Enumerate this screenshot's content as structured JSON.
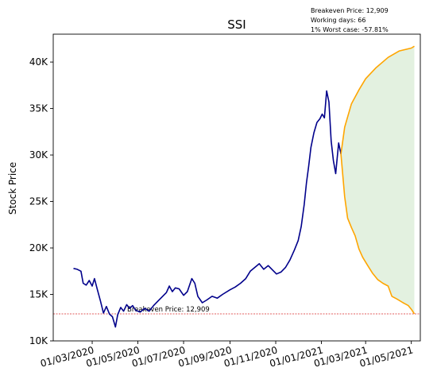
{
  "chart_data": {
    "type": "line",
    "title": "SSI",
    "xlabel": "",
    "ylabel": "Stock Price",
    "ylim": [
      10000,
      43000
    ],
    "y_ticks": [
      10000,
      15000,
      20000,
      25000,
      30000,
      35000,
      40000
    ],
    "y_tick_labels": [
      "10K",
      "15K",
      "20K",
      "25K",
      "30K",
      "35K",
      "40K"
    ],
    "x_range": [
      "2020-01-09",
      "2021-05-13"
    ],
    "x_ticks": [
      "2020-03-01",
      "2020-05-01",
      "2020-07-01",
      "2020-09-01",
      "2020-11-01",
      "2021-01-01",
      "2021-03-01",
      "2021-05-01"
    ],
    "x_tick_labels": [
      "01/03/2020",
      "01/05/2020",
      "01/07/2020",
      "01/09/2020",
      "01/11/2020",
      "01/01/2021",
      "01/03/2021",
      "01/05/2021"
    ],
    "info_lines": [
      "Breakeven Price: 12,909",
      "Working days: 66",
      "1% Worst case: -57.81%"
    ],
    "breakeven": {
      "value": 12909,
      "label": "Breakeven Price: 12,909"
    },
    "colors": {
      "history": "#00008b",
      "upper": "#ffa500",
      "lower": "#ffa500",
      "fill": "#e3f1e0",
      "breakeven": "#d62728"
    },
    "series": [
      {
        "name": "Price history",
        "points": [
          [
            "2020-02-05",
            17800
          ],
          [
            "2020-02-10",
            17700
          ],
          [
            "2020-02-15",
            17500
          ],
          [
            "2020-02-18",
            16200
          ],
          [
            "2020-02-22",
            16000
          ],
          [
            "2020-02-26",
            16500
          ],
          [
            "2020-03-01",
            15900
          ],
          [
            "2020-03-04",
            16700
          ],
          [
            "2020-03-08",
            15500
          ],
          [
            "2020-03-12",
            14300
          ],
          [
            "2020-03-16",
            13000
          ],
          [
            "2020-03-20",
            13700
          ],
          [
            "2020-03-24",
            12900
          ],
          [
            "2020-03-28",
            12600
          ],
          [
            "2020-04-01",
            11500
          ],
          [
            "2020-04-04",
            12800
          ],
          [
            "2020-04-08",
            13600
          ],
          [
            "2020-04-12",
            13200
          ],
          [
            "2020-04-16",
            13900
          ],
          [
            "2020-04-20",
            13500
          ],
          [
            "2020-04-24",
            13800
          ],
          [
            "2020-04-28",
            13300
          ],
          [
            "2020-05-04",
            13100
          ],
          [
            "2020-05-10",
            13500
          ],
          [
            "2020-05-16",
            13200
          ],
          [
            "2020-05-22",
            13800
          ],
          [
            "2020-05-28",
            14300
          ],
          [
            "2020-06-03",
            14800
          ],
          [
            "2020-06-08",
            15200
          ],
          [
            "2020-06-12",
            15900
          ],
          [
            "2020-06-16",
            15300
          ],
          [
            "2020-06-20",
            15700
          ],
          [
            "2020-06-25",
            15600
          ],
          [
            "2020-07-01",
            14900
          ],
          [
            "2020-07-06",
            15300
          ],
          [
            "2020-07-12",
            16700
          ],
          [
            "2020-07-16",
            16200
          ],
          [
            "2020-07-20",
            14800
          ],
          [
            "2020-07-26",
            14100
          ],
          [
            "2020-08-01",
            14400
          ],
          [
            "2020-08-08",
            14800
          ],
          [
            "2020-08-15",
            14600
          ],
          [
            "2020-08-22",
            15000
          ],
          [
            "2020-09-01",
            15500
          ],
          [
            "2020-09-08",
            15800
          ],
          [
            "2020-09-15",
            16200
          ],
          [
            "2020-09-22",
            16700
          ],
          [
            "2020-09-28",
            17500
          ],
          [
            "2020-10-04",
            17900
          ],
          [
            "2020-10-10",
            18300
          ],
          [
            "2020-10-16",
            17700
          ],
          [
            "2020-10-22",
            18100
          ],
          [
            "2020-10-28",
            17600
          ],
          [
            "2020-11-02",
            17200
          ],
          [
            "2020-11-08",
            17400
          ],
          [
            "2020-11-14",
            17900
          ],
          [
            "2020-11-20",
            18700
          ],
          [
            "2020-11-26",
            19800
          ],
          [
            "2020-12-01",
            20800
          ],
          [
            "2020-12-05",
            22300
          ],
          [
            "2020-12-09",
            24700
          ],
          [
            "2020-12-12",
            27000
          ],
          [
            "2020-12-15",
            28800
          ],
          [
            "2020-12-18",
            30800
          ],
          [
            "2020-12-22",
            32400
          ],
          [
            "2020-12-26",
            33500
          ],
          [
            "2020-12-30",
            33900
          ],
          [
            "2021-01-02",
            34400
          ],
          [
            "2021-01-05",
            34000
          ],
          [
            "2021-01-08",
            36900
          ],
          [
            "2021-01-11",
            35700
          ],
          [
            "2021-01-14",
            31500
          ],
          [
            "2021-01-17",
            29400
          ],
          [
            "2021-01-20",
            28000
          ],
          [
            "2021-01-24",
            31300
          ],
          [
            "2021-01-27",
            30100
          ]
        ]
      },
      {
        "name": "Upper bound",
        "points": [
          [
            "2021-01-27",
            30100
          ],
          [
            "2021-02-01",
            33000
          ],
          [
            "2021-02-10",
            35500
          ],
          [
            "2021-02-20",
            37000
          ],
          [
            "2021-03-01",
            38200
          ],
          [
            "2021-03-15",
            39400
          ],
          [
            "2021-03-31",
            40500
          ],
          [
            "2021-04-15",
            41200
          ],
          [
            "2021-05-01",
            41500
          ],
          [
            "2021-05-05",
            41700
          ]
        ]
      },
      {
        "name": "Lower bound",
        "points": [
          [
            "2021-01-27",
            30100
          ],
          [
            "2021-02-01",
            25500
          ],
          [
            "2021-02-05",
            23200
          ],
          [
            "2021-02-10",
            22200
          ],
          [
            "2021-02-15",
            21300
          ],
          [
            "2021-02-20",
            19900
          ],
          [
            "2021-02-25",
            19000
          ],
          [
            "2021-03-03",
            18200
          ],
          [
            "2021-03-10",
            17300
          ],
          [
            "2021-03-17",
            16600
          ],
          [
            "2021-03-24",
            16200
          ],
          [
            "2021-03-31",
            15900
          ],
          [
            "2021-04-05",
            14800
          ],
          [
            "2021-04-12",
            14500
          ],
          [
            "2021-04-20",
            14100
          ],
          [
            "2021-04-27",
            13800
          ],
          [
            "2021-05-01",
            13400
          ],
          [
            "2021-05-05",
            12909
          ]
        ]
      }
    ]
  }
}
